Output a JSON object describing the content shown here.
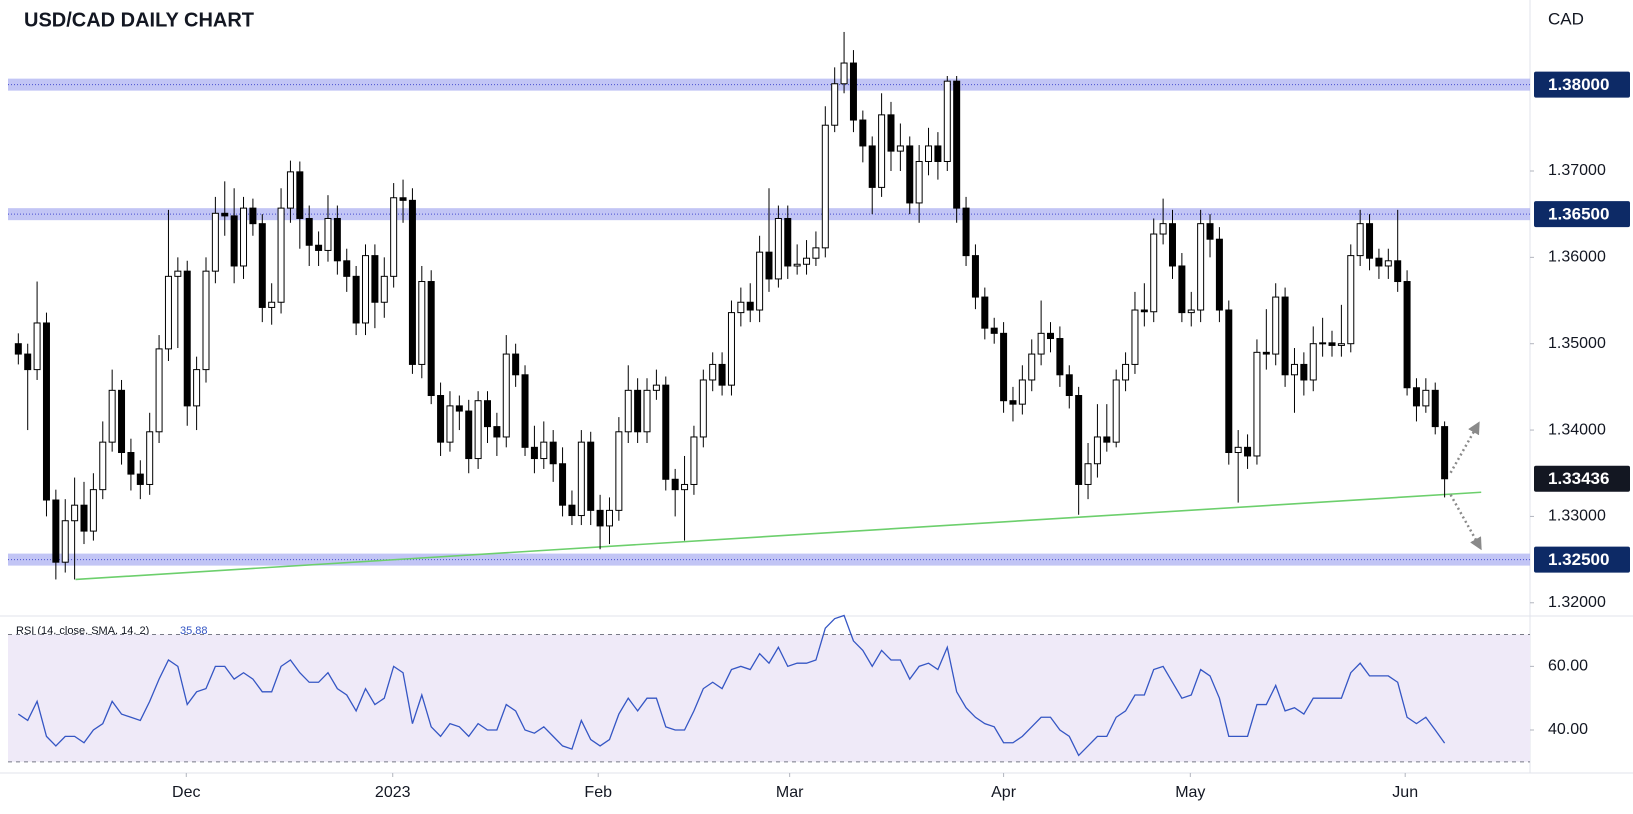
{
  "chart_data": [
    {
      "type": "candlestick",
      "title": "USD/CAD DAILY CHART",
      "currency": "CAD",
      "xlim": [
        -1.1,
        161.1
      ],
      "ylim": [
        1.3187,
        1.3898
      ],
      "yticks": [
        {
          "value": 1.32,
          "label": "1.32000"
        },
        {
          "value": 1.33,
          "label": "1.33000"
        },
        {
          "value": 1.34,
          "label": "1.34000"
        },
        {
          "value": 1.35,
          "label": "1.35000"
        },
        {
          "value": 1.36,
          "label": "1.36000"
        },
        {
          "value": 1.37,
          "label": "1.37000"
        }
      ],
      "grid": false,
      "up_color": "#ffffff",
      "down_color": "#000000",
      "open": [
        1.35,
        1.3488,
        1.347,
        1.3524,
        1.3319,
        1.3247,
        1.3295,
        1.3313,
        1.3283,
        1.3331,
        1.3386,
        1.3446,
        1.3374,
        1.3349,
        1.3337,
        1.3398,
        1.3494,
        1.3578,
        1.3584,
        1.3428,
        1.347,
        1.3584,
        1.3651,
        1.3648,
        1.359,
        1.3657,
        1.3639,
        1.3542,
        1.3548,
        1.3657,
        1.3699,
        1.3645,
        1.3614,
        1.3608,
        1.3645,
        1.3596,
        1.3578,
        1.3524,
        1.3602,
        1.3548,
        1.3578,
        1.3669,
        1.3666,
        1.3476,
        1.3572,
        1.344,
        1.3386,
        1.3428,
        1.3422,
        1.3367,
        1.3434,
        1.3404,
        1.3392,
        1.3488,
        1.3464,
        1.338,
        1.3367,
        1.3386,
        1.3361,
        1.3313,
        1.3301,
        1.3386,
        1.3307,
        1.3289,
        1.3307,
        1.3398,
        1.3446,
        1.3398,
        1.3446,
        1.3452,
        1.3343,
        1.3331,
        1.3337,
        1.3392,
        1.3458,
        1.3476,
        1.3452,
        1.3536,
        1.3548,
        1.3539,
        1.3606,
        1.3575,
        1.3645,
        1.359,
        1.3592,
        1.3599,
        1.3611,
        1.3753,
        1.3801,
        1.3825,
        1.3759,
        1.3729,
        1.3681,
        1.3765,
        1.3723,
        1.3729,
        1.3663,
        1.3711,
        1.3729,
        1.3711,
        1.3804,
        1.3657,
        1.3602,
        1.3554,
        1.3518,
        1.3512,
        1.3434,
        1.343,
        1.3458,
        1.3488,
        1.3512,
        1.3506,
        1.3464,
        1.344,
        1.3337,
        1.3361,
        1.3392,
        1.3386,
        1.3458,
        1.3476,
        1.3539,
        1.3537,
        1.3627,
        1.3639,
        1.359,
        1.3536,
        1.3539,
        1.3639,
        1.3621,
        1.3539,
        1.3374,
        1.338,
        1.337,
        1.349,
        1.3488,
        1.3554,
        1.3464,
        1.3476,
        1.3458,
        1.35,
        1.3501,
        1.3498,
        1.35,
        1.3602,
        1.3639,
        1.3599,
        1.359,
        1.3596,
        1.3572,
        1.3449,
        1.3428,
        1.3446,
        1.3404
      ],
      "high": [
        1.3512,
        1.35,
        1.3572,
        1.3536,
        1.3331,
        1.332,
        1.3345,
        1.334,
        1.335,
        1.341,
        1.347,
        1.3458,
        1.339,
        1.3365,
        1.342,
        1.351,
        1.3655,
        1.36,
        1.3596,
        1.3485,
        1.36,
        1.367,
        1.3688,
        1.368,
        1.367,
        1.3668,
        1.365,
        1.357,
        1.368,
        1.3712,
        1.3711,
        1.366,
        1.363,
        1.3672,
        1.366,
        1.361,
        1.359,
        1.3615,
        1.3615,
        1.36,
        1.3686,
        1.369,
        1.368,
        1.359,
        1.3585,
        1.3455,
        1.3445,
        1.344,
        1.3435,
        1.3445,
        1.3445,
        1.342,
        1.351,
        1.35,
        1.3475,
        1.3405,
        1.341,
        1.34,
        1.338,
        1.333,
        1.34,
        1.3398,
        1.3325,
        1.3322,
        1.3415,
        1.3475,
        1.346,
        1.346,
        1.347,
        1.3462,
        1.3355,
        1.337,
        1.3405,
        1.347,
        1.349,
        1.349,
        1.355,
        1.3565,
        1.357,
        1.3625,
        1.368,
        1.366,
        1.366,
        1.3615,
        1.362,
        1.363,
        1.3775,
        1.382,
        1.3861,
        1.384,
        1.377,
        1.374,
        1.379,
        1.378,
        1.3755,
        1.374,
        1.373,
        1.375,
        1.3745,
        1.381,
        1.381,
        1.367,
        1.3615,
        1.3565,
        1.353,
        1.3525,
        1.345,
        1.3475,
        1.3505,
        1.355,
        1.3525,
        1.352,
        1.3475,
        1.345,
        1.3385,
        1.343,
        1.343,
        1.347,
        1.349,
        1.356,
        1.357,
        1.3645,
        1.3668,
        1.3655,
        1.3605,
        1.356,
        1.3655,
        1.365,
        1.3635,
        1.355,
        1.34,
        1.3395,
        1.3505,
        1.354,
        1.357,
        1.3565,
        1.3495,
        1.349,
        1.352,
        1.353,
        1.3515,
        1.3545,
        1.3615,
        1.3655,
        1.365,
        1.361,
        1.361,
        1.3655,
        1.3585,
        1.346,
        1.346,
        1.3455,
        1.341
      ],
      "low": [
        1.3476,
        1.34,
        1.3458,
        1.33,
        1.3227,
        1.3235,
        1.3227,
        1.3268,
        1.3272,
        1.332,
        1.3375,
        1.336,
        1.333,
        1.332,
        1.3325,
        1.3385,
        1.348,
        1.3495,
        1.3405,
        1.34,
        1.3455,
        1.357,
        1.3625,
        1.357,
        1.3575,
        1.3625,
        1.3525,
        1.3522,
        1.3535,
        1.364,
        1.361,
        1.359,
        1.359,
        1.3595,
        1.358,
        1.356,
        1.351,
        1.351,
        1.3518,
        1.353,
        1.3565,
        1.364,
        1.3465,
        1.346,
        1.343,
        1.337,
        1.3375,
        1.34,
        1.335,
        1.3355,
        1.3385,
        1.337,
        1.338,
        1.345,
        1.337,
        1.335,
        1.3355,
        1.334,
        1.33,
        1.329,
        1.329,
        1.329,
        1.3262,
        1.3268,
        1.3295,
        1.3385,
        1.3385,
        1.3385,
        1.3435,
        1.333,
        1.33,
        1.3272,
        1.3325,
        1.338,
        1.3445,
        1.344,
        1.344,
        1.352,
        1.3525,
        1.3525,
        1.356,
        1.3565,
        1.3575,
        1.358,
        1.358,
        1.359,
        1.36,
        1.3745,
        1.379,
        1.3745,
        1.371,
        1.365,
        1.367,
        1.37,
        1.37,
        1.365,
        1.364,
        1.3695,
        1.369,
        1.37,
        1.364,
        1.359,
        1.354,
        1.3505,
        1.35,
        1.342,
        1.341,
        1.3418,
        1.3445,
        1.3475,
        1.349,
        1.345,
        1.3425,
        1.3302,
        1.332,
        1.3345,
        1.3375,
        1.338,
        1.3445,
        1.3465,
        1.352,
        1.3525,
        1.3615,
        1.3575,
        1.3525,
        1.352,
        1.3525,
        1.36,
        1.3525,
        1.336,
        1.3316,
        1.3355,
        1.336,
        1.347,
        1.3475,
        1.345,
        1.342,
        1.344,
        1.3445,
        1.3485,
        1.3485,
        1.3485,
        1.349,
        1.359,
        1.3585,
        1.3575,
        1.3575,
        1.356,
        1.344,
        1.341,
        1.342,
        1.3395,
        1.3322
      ],
      "close": [
        1.3488,
        1.347,
        1.3524,
        1.3319,
        1.3247,
        1.3295,
        1.3313,
        1.3283,
        1.3331,
        1.3386,
        1.3446,
        1.3374,
        1.3349,
        1.3337,
        1.3398,
        1.3494,
        1.3578,
        1.3584,
        1.3428,
        1.347,
        1.3584,
        1.3651,
        1.3648,
        1.359,
        1.3657,
        1.3639,
        1.3542,
        1.3548,
        1.3657,
        1.3699,
        1.3645,
        1.3614,
        1.3608,
        1.3645,
        1.3596,
        1.3578,
        1.3524,
        1.3602,
        1.3548,
        1.3578,
        1.3669,
        1.3666,
        1.3476,
        1.3572,
        1.344,
        1.3386,
        1.3428,
        1.3422,
        1.3367,
        1.3434,
        1.3404,
        1.3392,
        1.3488,
        1.3464,
        1.338,
        1.3367,
        1.3386,
        1.3361,
        1.3313,
        1.3301,
        1.3386,
        1.3307,
        1.3289,
        1.3307,
        1.3398,
        1.3446,
        1.3398,
        1.3446,
        1.3452,
        1.3343,
        1.3331,
        1.3337,
        1.3392,
        1.3458,
        1.3476,
        1.3452,
        1.3536,
        1.3548,
        1.3539,
        1.3606,
        1.3575,
        1.3645,
        1.359,
        1.3592,
        1.3599,
        1.3611,
        1.3753,
        1.3801,
        1.3825,
        1.3759,
        1.3729,
        1.3681,
        1.3765,
        1.3723,
        1.3729,
        1.3663,
        1.3711,
        1.3729,
        1.3711,
        1.3804,
        1.3657,
        1.3602,
        1.3554,
        1.3518,
        1.3512,
        1.3434,
        1.343,
        1.3458,
        1.3488,
        1.3512,
        1.3506,
        1.3464,
        1.344,
        1.3337,
        1.3361,
        1.3392,
        1.3386,
        1.3458,
        1.3476,
        1.3539,
        1.3537,
        1.3627,
        1.3639,
        1.359,
        1.3536,
        1.3539,
        1.3639,
        1.3621,
        1.3539,
        1.3374,
        1.338,
        1.337,
        1.349,
        1.3488,
        1.3554,
        1.3464,
        1.3476,
        1.3458,
        1.35,
        1.3501,
        1.3498,
        1.35,
        1.3602,
        1.3639,
        1.3599,
        1.359,
        1.3596,
        1.3572,
        1.3449,
        1.3428,
        1.3446,
        1.3404,
        1.33436
      ],
      "levels": [
        {
          "value": 1.38,
          "label": "1.38000"
        },
        {
          "value": 1.365,
          "label": "1.36500"
        },
        {
          "value": 1.325,
          "label": "1.32500"
        }
      ],
      "level_color": "#aeb2f2",
      "level_label_color": "#0d2a66",
      "last_price_color": "#131722",
      "trendline": {
        "x": [
          6.1,
          155.9
        ],
        "y": [
          1.3227,
          1.3328
        ],
        "color": "#6ccf6c"
      }
    },
    {
      "type": "line",
      "legend": "RSI (14, close, SMA, 14, 2)",
      "color": "#3556c4",
      "band_color": "#efeaf8",
      "xlim": [
        -1.1,
        161.1
      ],
      "ylim": [
        26.8,
        75.2
      ],
      "yticks": [
        {
          "value": 40,
          "label": "40.00"
        },
        {
          "value": 60,
          "label": "60.00"
        }
      ],
      "bands": [
        30,
        70
      ],
      "xticks": [
        {
          "value": 17.9,
          "label": "Dec"
        },
        {
          "value": 39.9,
          "label": "2023"
        },
        {
          "value": 61.8,
          "label": "Feb"
        },
        {
          "value": 82.2,
          "label": "Mar"
        },
        {
          "value": 105.0,
          "label": "Apr"
        },
        {
          "value": 124.9,
          "label": "May"
        },
        {
          "value": 147.8,
          "label": "Jun"
        }
      ],
      "values": [
        45,
        43,
        49,
        38,
        35,
        38,
        38,
        36,
        40,
        42,
        49,
        45,
        44,
        43,
        49,
        56,
        62,
        60,
        48,
        52,
        53,
        60,
        60,
        56,
        58,
        56,
        52,
        52,
        60,
        62,
        58,
        55,
        55,
        58,
        53,
        51,
        46,
        53,
        48,
        50,
        60,
        58,
        42,
        51,
        41,
        38,
        42,
        41,
        38,
        42,
        40,
        40,
        48,
        46,
        40,
        39,
        41,
        38,
        35,
        34,
        43,
        37,
        35,
        37,
        45,
        50,
        46,
        50,
        50,
        41,
        40,
        40,
        46,
        53,
        55,
        53,
        59,
        60,
        59,
        64,
        61,
        66,
        60,
        61,
        61,
        62,
        72,
        75,
        76,
        68,
        65,
        60,
        65,
        62,
        62,
        56,
        60,
        61,
        59,
        66,
        52,
        47,
        44,
        42,
        41,
        36,
        36,
        38,
        41,
        44,
        44,
        40,
        38,
        32,
        35,
        38,
        38,
        44,
        46,
        51,
        51,
        59,
        60,
        55,
        50,
        51,
        59,
        57,
        50,
        38,
        38,
        38,
        48,
        48,
        54,
        46,
        47,
        45,
        50,
        50,
        50,
        50,
        58,
        61,
        57,
        57,
        57,
        55,
        44,
        42,
        44,
        40,
        35.88
      ]
    }
  ]
}
